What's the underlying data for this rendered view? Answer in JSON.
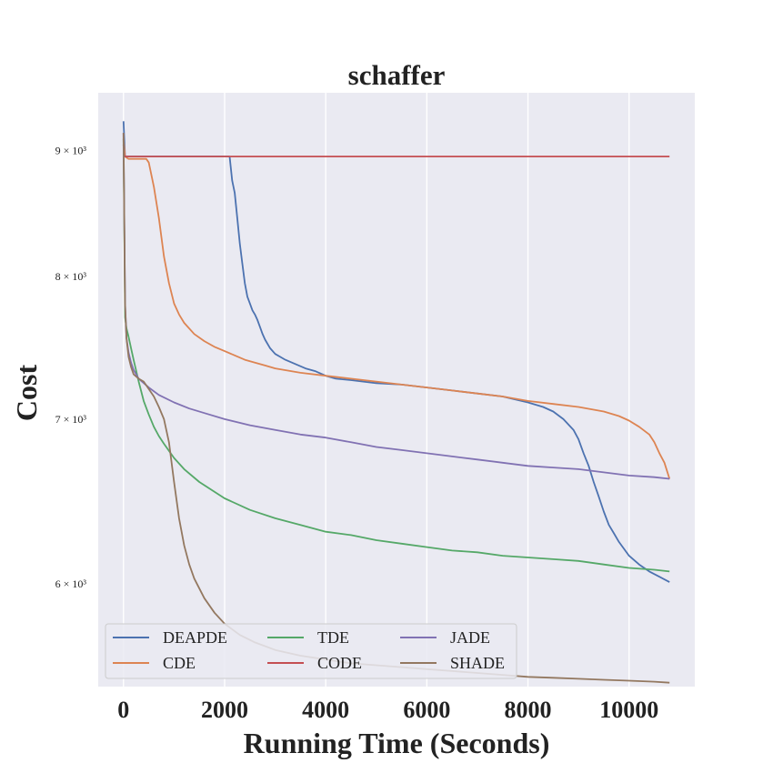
{
  "chart_data": {
    "type": "line",
    "title": "schaffer",
    "xlabel": "Running Time (Seconds)",
    "ylabel": "Cost",
    "xlim": [
      -500,
      11300
    ],
    "ylim": [
      5450,
      9500
    ],
    "yscale": "log",
    "grid": true,
    "legend_position": "lower-left",
    "xticks": [
      0,
      2000,
      4000,
      6000,
      8000,
      10000
    ],
    "xtick_labels": [
      "0",
      "2000",
      "4000",
      "6000",
      "8000",
      "10000"
    ],
    "yticks": [
      6000,
      7000,
      8000,
      9000
    ],
    "ytick_labels": [
      "6 × 10³",
      "7 × 10³",
      "8 × 10³",
      "9 × 10³"
    ],
    "series": [
      {
        "name": "DEAPDE",
        "color": "#4c72b0",
        "x": [
          0,
          30,
          60,
          100,
          500,
          1000,
          1500,
          2100,
          2150,
          2200,
          2250,
          2300,
          2350,
          2400,
          2450,
          2500,
          2550,
          2600,
          2650,
          2700,
          2750,
          2800,
          2900,
          3000,
          3100,
          3200,
          3400,
          3600,
          3800,
          4000,
          4200,
          4500,
          5000,
          5500,
          6000,
          6500,
          7000,
          7500,
          8000,
          8300,
          8500,
          8700,
          8900,
          9000,
          9100,
          9200,
          9300,
          9400,
          9500,
          9600,
          9700,
          9800,
          10000,
          10200,
          10400,
          10600,
          10800
        ],
        "y": [
          9250,
          8950,
          8950,
          8950,
          8950,
          8950,
          8950,
          8950,
          8750,
          8650,
          8450,
          8250,
          8100,
          7950,
          7850,
          7800,
          7750,
          7720,
          7680,
          7630,
          7580,
          7540,
          7480,
          7440,
          7420,
          7400,
          7370,
          7340,
          7320,
          7290,
          7270,
          7260,
          7240,
          7230,
          7210,
          7190,
          7170,
          7150,
          7110,
          7080,
          7050,
          7000,
          6930,
          6870,
          6780,
          6700,
          6600,
          6510,
          6420,
          6340,
          6290,
          6240,
          6160,
          6110,
          6070,
          6040,
          6010
        ]
      },
      {
        "name": "CDE",
        "color": "#dd8452",
        "x": [
          0,
          30,
          100,
          300,
          450,
          500,
          600,
          700,
          800,
          900,
          1000,
          1100,
          1200,
          1400,
          1600,
          1800,
          2000,
          2200,
          2400,
          2600,
          2800,
          3000,
          3500,
          4000,
          4500,
          5000,
          5500,
          6000,
          6500,
          7000,
          7500,
          8000,
          8500,
          9000,
          9500,
          9800,
          10000,
          10200,
          10400,
          10500,
          10600,
          10700,
          10800
        ],
        "y": [
          9100,
          8950,
          8930,
          8930,
          8930,
          8900,
          8700,
          8450,
          8150,
          7950,
          7800,
          7720,
          7660,
          7580,
          7530,
          7490,
          7460,
          7430,
          7400,
          7380,
          7360,
          7340,
          7310,
          7290,
          7270,
          7250,
          7230,
          7210,
          7190,
          7170,
          7150,
          7120,
          7100,
          7080,
          7050,
          7020,
          6990,
          6950,
          6900,
          6850,
          6780,
          6720,
          6620
        ]
      },
      {
        "name": "TDE",
        "color": "#55a868",
        "x": [
          0,
          30,
          60,
          100,
          150,
          200,
          300,
          400,
          500,
          600,
          700,
          800,
          1000,
          1200,
          1500,
          2000,
          2500,
          3000,
          3500,
          4000,
          4500,
          5000,
          5500,
          6000,
          6500,
          7000,
          7500,
          8000,
          8500,
          9000,
          9500,
          10000,
          10500,
          10800
        ],
        "y": [
          9100,
          7700,
          7620,
          7560,
          7480,
          7400,
          7250,
          7120,
          7030,
          6950,
          6890,
          6840,
          6750,
          6680,
          6600,
          6500,
          6430,
          6380,
          6340,
          6300,
          6280,
          6250,
          6230,
          6210,
          6190,
          6180,
          6160,
          6150,
          6140,
          6130,
          6110,
          6090,
          6080,
          6070
        ]
      },
      {
        "name": "CODE",
        "color": "#c44e52",
        "x": [
          0,
          10,
          20,
          40,
          100,
          1000,
          5000,
          10000,
          10800
        ],
        "y": [
          9050,
          8970,
          8950,
          8950,
          8950,
          8950,
          8950,
          8950,
          8950
        ]
      },
      {
        "name": "JADE",
        "color": "#8172b3",
        "x": [
          0,
          30,
          60,
          100,
          150,
          200,
          300,
          500,
          700,
          1000,
          1300,
          1600,
          2000,
          2500,
          3000,
          3500,
          4000,
          4500,
          5000,
          5500,
          6000,
          6500,
          7000,
          7500,
          8000,
          8500,
          9000,
          9500,
          10000,
          10500,
          10800
        ],
        "y": [
          9150,
          7800,
          7550,
          7450,
          7380,
          7330,
          7270,
          7210,
          7160,
          7110,
          7070,
          7040,
          7000,
          6960,
          6930,
          6900,
          6880,
          6850,
          6820,
          6800,
          6780,
          6760,
          6740,
          6720,
          6700,
          6690,
          6680,
          6660,
          6640,
          6630,
          6620
        ]
      },
      {
        "name": "SHADE",
        "color": "#937860",
        "x": [
          0,
          30,
          60,
          100,
          150,
          200,
          300,
          400,
          500,
          600,
          700,
          800,
          900,
          1000,
          1100,
          1200,
          1300,
          1400,
          1600,
          1800,
          2000,
          2300,
          2600,
          3000,
          3500,
          4000,
          4500,
          5000,
          5500,
          6000,
          6500,
          7000,
          7500,
          8000,
          8500,
          9000,
          9500,
          10000,
          10500,
          10800
        ],
        "y": [
          9150,
          7800,
          7550,
          7420,
          7350,
          7300,
          7270,
          7250,
          7200,
          7150,
          7080,
          7000,
          6850,
          6600,
          6380,
          6220,
          6110,
          6030,
          5920,
          5840,
          5780,
          5720,
          5680,
          5640,
          5610,
          5590,
          5570,
          5560,
          5550,
          5540,
          5530,
          5520,
          5510,
          5500,
          5495,
          5490,
          5485,
          5480,
          5475,
          5470
        ]
      }
    ]
  }
}
